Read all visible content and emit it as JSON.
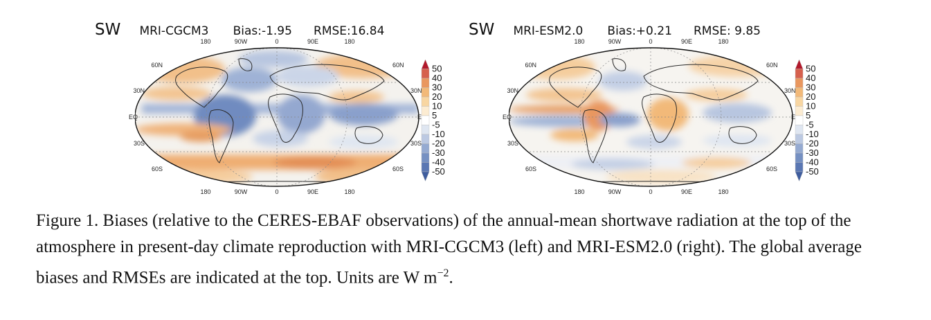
{
  "panels": [
    {
      "variable": "SW",
      "model": "MRI-CGCM3",
      "bias": "Bias:-1.95",
      "rmse": "RMSE:16.84"
    },
    {
      "variable": "SW",
      "model": "MRI-ESM2.0",
      "bias": "Bias:+0.21",
      "rmse": "RMSE: 9.85"
    }
  ],
  "axes": {
    "lon_labels": [
      "180",
      "90W",
      "0",
      "90E",
      "180"
    ],
    "lat_left": [
      "60N",
      "30N",
      "EQ",
      "30S",
      "60S"
    ],
    "lat_right": [
      "60N",
      "30N",
      "EQ",
      "30S",
      "60S"
    ]
  },
  "colorbar": {
    "labels": [
      "50",
      "40",
      "30",
      "20",
      "10",
      "5",
      "-5",
      "-10",
      "-20",
      "-30",
      "-40",
      "-50"
    ],
    "colors": [
      "#b2182b",
      "#d6604d",
      "#e9975f",
      "#f2b979",
      "#f8d6a2",
      "#fcecd2",
      "#ffffff",
      "#dfe6f1",
      "#bcc9e2",
      "#95aad1",
      "#7590c2",
      "#5a77b3",
      "#3f5d9e"
    ]
  },
  "caption": {
    "text": "Figure 1. Biases (relative to the CERES-EBAF observations) of the annual-mean shortwave radiation at the top of the atmosphere in present-day climate reproduction with MRI-CGCM3 (left) and MRI-ESM2.0 (right). The global average biases and RMSEs are indicated at the top. Units are W m",
    "superscript": "−2",
    "end": "."
  }
}
